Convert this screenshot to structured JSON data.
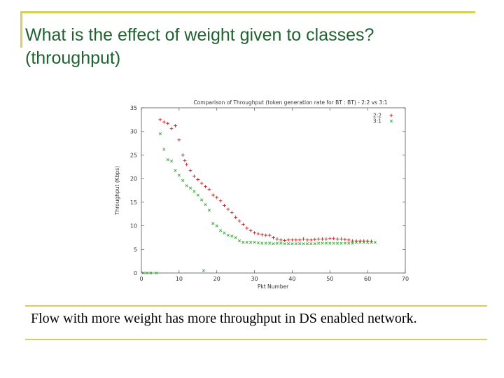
{
  "slide": {
    "title_line1": "What is the effect of weight given to classes?",
    "title_line2": "(throughput)",
    "caption": "Flow with more weight has more throughput in DS enabled network."
  },
  "colors": {
    "title": "#1f6330",
    "accent_rule": "#d9cf55",
    "series_22": "#cc2222",
    "series_31": "#33aa33"
  },
  "chart_data": {
    "type": "scatter",
    "title": "Comparison of Throughput (token generation rate for BT : BT) - 2:2 vs 3:1",
    "xlabel": "Pkt Number",
    "ylabel": "Throughput (Kbps)",
    "xlim": [
      0,
      70
    ],
    "ylim": [
      0,
      35
    ],
    "xticks": [
      0,
      10,
      20,
      30,
      40,
      50,
      60,
      70
    ],
    "yticks": [
      0,
      5,
      10,
      15,
      20,
      25,
      30,
      35
    ],
    "ytick_labels": [
      "0",
      "5",
      "10",
      "15",
      "20",
      "25",
      "30",
      "35"
    ],
    "legend_position": "top-right",
    "series": [
      {
        "name": "2:2",
        "marker": "+",
        "color": "#cc2222",
        "points": [
          [
            5,
            32.5
          ],
          [
            6,
            32
          ],
          [
            7,
            31.7
          ],
          [
            8,
            30.6
          ],
          [
            9,
            31.2
          ],
          [
            10,
            28.2
          ],
          [
            11,
            25
          ],
          [
            11.5,
            23.8
          ],
          [
            12,
            23
          ],
          [
            13,
            21.7
          ],
          [
            14,
            20.5
          ],
          [
            15,
            19.8
          ],
          [
            16,
            19
          ],
          [
            17,
            18.3
          ],
          [
            18,
            17.7
          ],
          [
            19,
            16.5
          ],
          [
            20,
            16
          ],
          [
            21,
            15.3
          ],
          [
            22,
            14.3
          ],
          [
            23,
            13.5
          ],
          [
            24,
            12.8
          ],
          [
            25,
            11.8
          ],
          [
            26,
            11
          ],
          [
            27,
            10.3
          ],
          [
            28,
            9.5
          ],
          [
            29,
            9
          ],
          [
            30,
            8.5
          ],
          [
            31,
            8.3
          ],
          [
            32,
            8.1
          ],
          [
            33,
            8
          ],
          [
            34,
            8
          ],
          [
            35,
            7.5
          ],
          [
            36,
            7.2
          ],
          [
            37,
            7
          ],
          [
            38,
            6.9
          ],
          [
            39,
            7
          ],
          [
            40,
            7
          ],
          [
            41,
            7
          ],
          [
            42,
            7
          ],
          [
            43,
            7.2
          ],
          [
            44,
            7
          ],
          [
            45,
            7
          ],
          [
            46,
            7.1
          ],
          [
            47,
            7.2
          ],
          [
            48,
            7.2
          ],
          [
            49,
            7.2
          ],
          [
            50,
            7.3
          ],
          [
            51,
            7.3
          ],
          [
            52,
            7.2
          ],
          [
            53,
            7.2
          ],
          [
            54,
            7.1
          ],
          [
            55,
            7
          ],
          [
            56,
            6.8
          ],
          [
            57,
            6.8
          ],
          [
            58,
            6.8
          ],
          [
            59,
            6.8
          ],
          [
            60,
            6.8
          ],
          [
            61,
            6.7
          ]
        ]
      },
      {
        "name": "3:1",
        "marker": "x",
        "color": "#33aa33",
        "points": [
          [
            0.5,
            0
          ],
          [
            1.5,
            0
          ],
          [
            2.5,
            0
          ],
          [
            4,
            0
          ],
          [
            5,
            29.5
          ],
          [
            6,
            26.2
          ],
          [
            7,
            24
          ],
          [
            8,
            23.7
          ],
          [
            9,
            21.7
          ],
          [
            10,
            20.7
          ],
          [
            11,
            19.6
          ],
          [
            12,
            18.5
          ],
          [
            13,
            18
          ],
          [
            14,
            17.3
          ],
          [
            15,
            16.5
          ],
          [
            16,
            15.5
          ],
          [
            16.5,
            0.5
          ],
          [
            17,
            14.5
          ],
          [
            18,
            13.3
          ],
          [
            19,
            10.5
          ],
          [
            20,
            10
          ],
          [
            21,
            9
          ],
          [
            22,
            8.5
          ],
          [
            23,
            8
          ],
          [
            24,
            7.8
          ],
          [
            25,
            7.5
          ],
          [
            26,
            6.8
          ],
          [
            27,
            6.5
          ],
          [
            28,
            6.5
          ],
          [
            29,
            6.5
          ],
          [
            30,
            6.5
          ],
          [
            31,
            6.4
          ],
          [
            32,
            6.3
          ],
          [
            33,
            6.3
          ],
          [
            34,
            6.3
          ],
          [
            35,
            6.2
          ],
          [
            36,
            6.3
          ],
          [
            37,
            6.3
          ],
          [
            38,
            6.2
          ],
          [
            39,
            6.2
          ],
          [
            40,
            6.2
          ],
          [
            41,
            6.2
          ],
          [
            42,
            6.2
          ],
          [
            43,
            6.2
          ],
          [
            44,
            6.2
          ],
          [
            45,
            6.2
          ],
          [
            46,
            6.2
          ],
          [
            47,
            6.3
          ],
          [
            48,
            6.3
          ],
          [
            49,
            6.3
          ],
          [
            50,
            6.3
          ],
          [
            51,
            6.3
          ],
          [
            52,
            6.3
          ],
          [
            53,
            6.3
          ],
          [
            54,
            6.3
          ],
          [
            55,
            6.3
          ],
          [
            56,
            6.3
          ],
          [
            57,
            6.5
          ],
          [
            58,
            6.5
          ],
          [
            59,
            6.5
          ],
          [
            60,
            6.5
          ],
          [
            61,
            6.5
          ],
          [
            62,
            6.5
          ]
        ]
      }
    ]
  }
}
